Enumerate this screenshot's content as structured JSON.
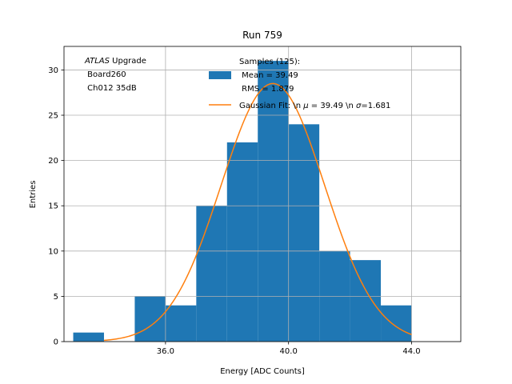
{
  "chart_data": {
    "type": "bar",
    "title": "Run 759",
    "xlabel": "Energy [ADC Counts]",
    "ylabel": "Entries",
    "xlim": [
      32.7,
      45.6
    ],
    "ylim": [
      0,
      32.6
    ],
    "xticks": [
      36.0,
      40.0,
      44.0
    ],
    "xtick_labels": [
      "36.0",
      "40.0",
      "44.0"
    ],
    "yticks": [
      0,
      5,
      10,
      15,
      20,
      25,
      30
    ],
    "ytick_labels": [
      "0",
      "5",
      "10",
      "15",
      "20",
      "25",
      "30"
    ],
    "grid": true,
    "colors": {
      "bars": "#1f77b4",
      "fit": "#ff7f0e",
      "grid": "#b0b0b0"
    },
    "bins": [
      {
        "x0": 33.0,
        "x1": 34.0,
        "count": 1
      },
      {
        "x0": 34.0,
        "x1": 35.0,
        "count": 0
      },
      {
        "x0": 35.0,
        "x1": 36.0,
        "count": 5
      },
      {
        "x0": 36.0,
        "x1": 37.0,
        "count": 4
      },
      {
        "x0": 37.0,
        "x1": 38.0,
        "count": 15
      },
      {
        "x0": 38.0,
        "x1": 39.0,
        "count": 22
      },
      {
        "x0": 39.0,
        "x1": 40.0,
        "count": 31
      },
      {
        "x0": 40.0,
        "x1": 41.0,
        "count": 24
      },
      {
        "x0": 41.0,
        "x1": 42.0,
        "count": 10
      },
      {
        "x0": 42.0,
        "x1": 43.0,
        "count": 9
      },
      {
        "x0": 43.0,
        "x1": 44.0,
        "count": 4
      }
    ],
    "fit": {
      "mu": 39.49,
      "sigma": 1.681,
      "peak": 28.5,
      "x_range": [
        34.0,
        44.0
      ]
    },
    "legend": {
      "position": "top-right",
      "entries": [
        {
          "kind": "bar",
          "lines": [
            "Samples (125):",
            " Mean = 39.49",
            " RMS = 1.879"
          ]
        },
        {
          "kind": "line",
          "prefix": "Gaussian Fit: \\n ",
          "mu_sym": "μ",
          "mid": " = 39.49 \\n ",
          "sigma_sym": "σ",
          "suffix": "=1.681"
        }
      ]
    },
    "annotation": {
      "experiment": "ATLAS",
      "experiment_suffix": " Upgrade",
      "line2": " Board260",
      "line3": " Ch012 35dB"
    }
  }
}
